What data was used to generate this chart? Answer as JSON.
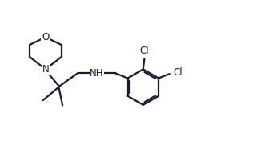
{
  "bg_color": "#ffffff",
  "line_color": "#1a1a2e",
  "text_color": "#1a1a2e",
  "line_width": 1.6,
  "font_size": 8.5,
  "figsize": [
    3.36,
    1.76
  ],
  "dpi": 100,
  "xlim": [
    0,
    10
  ],
  "ylim": [
    0,
    5.5
  ]
}
